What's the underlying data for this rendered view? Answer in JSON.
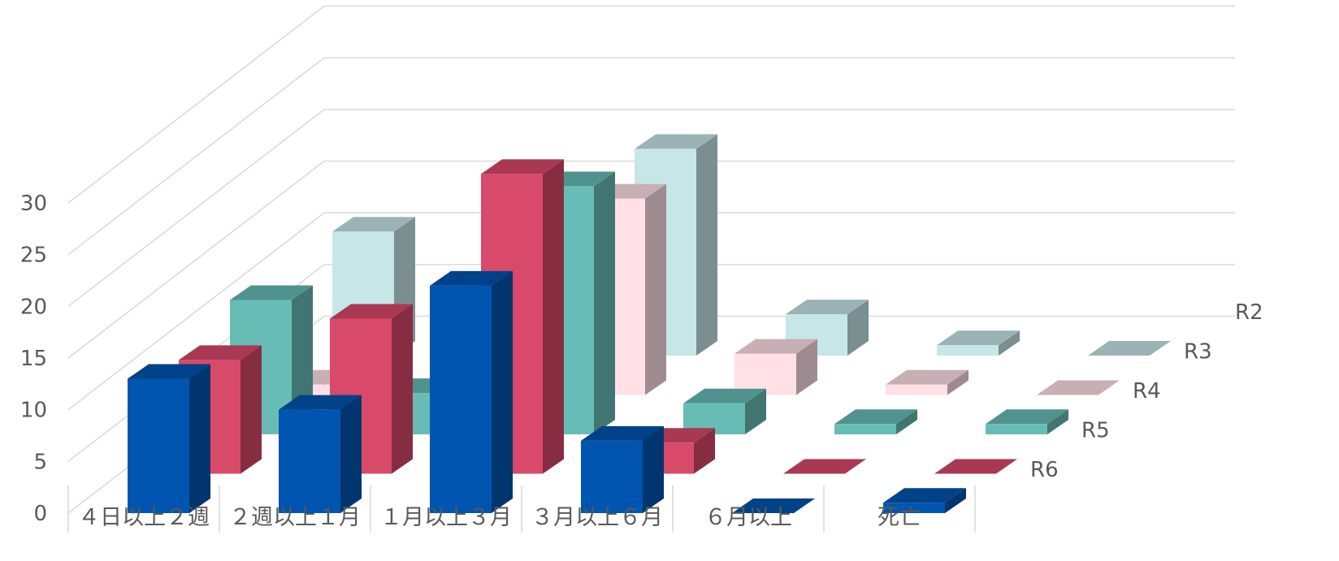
{
  "chart_data": {
    "type": "bar",
    "subtype": "3d-column",
    "title": "",
    "xlabel": "",
    "ylabel": "",
    "ylim": [
      0,
      30
    ],
    "yticks": [
      0,
      5,
      10,
      15,
      20,
      25,
      30
    ],
    "grid": true,
    "legend": "none",
    "categories": [
      "４日以上２週",
      "２週以上１月",
      "１月以上３月",
      "３月以上６月",
      "６月以上",
      "死亡"
    ],
    "series": [
      {
        "name": "R6",
        "values": [
          13,
          10,
          22,
          7,
          0,
          1
        ],
        "color": "#0055b0"
      },
      {
        "name": "R5",
        "values": [
          11,
          15,
          29,
          3,
          0,
          0
        ],
        "color": "#d9496a"
      },
      {
        "name": "R4",
        "values": [
          13,
          4,
          24,
          3,
          1,
          1
        ],
        "color": "#67bdb6"
      },
      {
        "name": "R3",
        "values": [
          1,
          0,
          19,
          4,
          1,
          0
        ],
        "color": "#ffe0e6"
      },
      {
        "name": "R2",
        "values": [
          12,
          0,
          20,
          4,
          1,
          0
        ],
        "color": "#c7e6e8"
      }
    ]
  }
}
